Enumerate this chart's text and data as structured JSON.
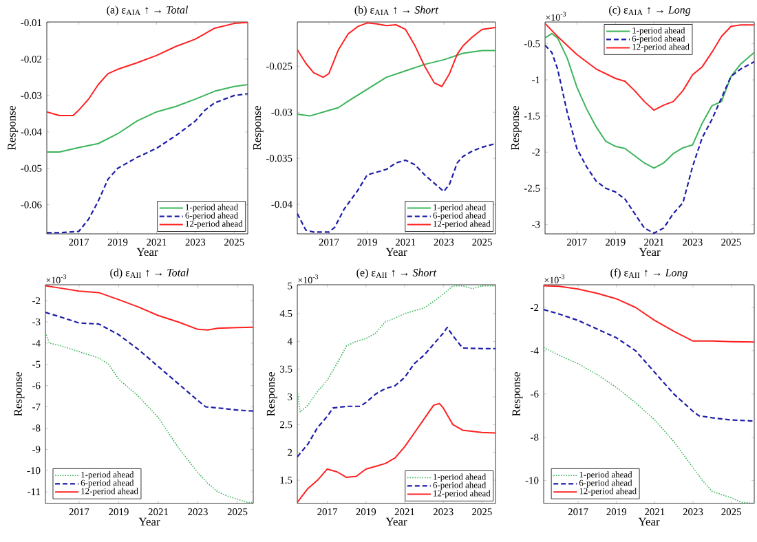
{
  "chart_data": [
    {
      "type": "line",
      "title": "(a) ε$_{AIA}$ ↑ → *Total*",
      "xlabel": "Year",
      "ylabel": "Response",
      "xlim": [
        2015.35,
        2025.7
      ],
      "ylim": [
        -0.068,
        -0.0098
      ],
      "xticks": [
        2017,
        2019,
        2021,
        2023,
        2025
      ],
      "yticks": [
        -0.06,
        -0.05,
        -0.04,
        -0.03,
        -0.02,
        -0.01
      ],
      "legend": "bottom right",
      "series": [
        {
          "name": "1-period ahead",
          "color": "#3cb45a",
          "line_style": "solid",
          "x": [
            2015.35,
            2016,
            2017,
            2018,
            2019,
            2020,
            2021,
            2022,
            2023,
            2024,
            2025,
            2025.7
          ],
          "values": [
            -0.0455,
            -0.0455,
            -0.0443,
            -0.0432,
            -0.0405,
            -0.037,
            -0.0345,
            -0.033,
            -0.031,
            -0.0288,
            -0.0275,
            -0.027
          ]
        },
        {
          "name": "6-period ahead",
          "color": "#1c1ca8",
          "line_style": "dashed",
          "x": [
            2015.35,
            2016,
            2017,
            2017.5,
            2018,
            2018.5,
            2019,
            2020,
            2021,
            2022,
            2023,
            2023.5,
            2024,
            2025,
            2025.7
          ],
          "values": [
            -0.0677,
            -0.0677,
            -0.0673,
            -0.064,
            -0.059,
            -0.053,
            -0.05,
            -0.047,
            -0.0445,
            -0.041,
            -0.037,
            -0.034,
            -0.032,
            -0.03,
            -0.0295
          ]
        },
        {
          "name": "12-period ahead",
          "color": "#ff2020",
          "line_style": "solid",
          "x": [
            2015.35,
            2016,
            2016.7,
            2017,
            2017.5,
            2018,
            2018.5,
            2019,
            2020,
            2021,
            2022,
            2023,
            2024,
            2025,
            2025.7
          ],
          "values": [
            -0.0345,
            -0.0355,
            -0.0355,
            -0.034,
            -0.031,
            -0.027,
            -0.024,
            -0.0228,
            -0.021,
            -0.019,
            -0.0165,
            -0.0145,
            -0.0115,
            -0.0102,
            -0.0099
          ]
        }
      ]
    },
    {
      "type": "line",
      "title": "(b) ε$_{AIA}$ ↑ → *Short*",
      "xlabel": "Year",
      "ylabel": "Response",
      "xlim": [
        2015.35,
        2025.7
      ],
      "ylim": [
        -0.0432,
        -0.0202
      ],
      "xticks": [
        2017,
        2019,
        2021,
        2023,
        2025
      ],
      "yticks": [
        -0.04,
        -0.035,
        -0.03,
        -0.025
      ],
      "legend": "bottom right",
      "series": [
        {
          "name": "1-period ahead",
          "color": "#3cb45a",
          "line_style": "solid",
          "x": [
            2015.35,
            2016,
            2017,
            2017.5,
            2018,
            2019,
            2020,
            2021,
            2022,
            2023,
            2024,
            2025,
            2025.7
          ],
          "values": [
            -0.0302,
            -0.0304,
            -0.0298,
            -0.0295,
            -0.0288,
            -0.0275,
            -0.0262,
            -0.0255,
            -0.0248,
            -0.0243,
            -0.0236,
            -0.0233,
            -0.0233
          ]
        },
        {
          "name": "6-period ahead",
          "color": "#1c1ca8",
          "line_style": "dashed",
          "x": [
            2015.35,
            2015.8,
            2016.2,
            2017,
            2017.3,
            2017.8,
            2018.5,
            2019,
            2019.5,
            2020,
            2020.5,
            2021,
            2021.5,
            2022,
            2022.5,
            2023,
            2023.3,
            2023.7,
            2024,
            2024.5,
            2025,
            2025.7
          ],
          "values": [
            -0.041,
            -0.0428,
            -0.043,
            -0.043,
            -0.0425,
            -0.0405,
            -0.0385,
            -0.0368,
            -0.0365,
            -0.0362,
            -0.0355,
            -0.0352,
            -0.0357,
            -0.0368,
            -0.0377,
            -0.0386,
            -0.0378,
            -0.0355,
            -0.0348,
            -0.0342,
            -0.0338,
            -0.0334
          ]
        },
        {
          "name": "12-period ahead",
          "color": "#ff2020",
          "line_style": "solid",
          "x": [
            2015.35,
            2015.8,
            2016.2,
            2016.7,
            2017,
            2017.5,
            2018,
            2018.5,
            2019,
            2019.5,
            2020,
            2020.5,
            2021,
            2021.5,
            2022,
            2022.5,
            2022.9,
            2023.3,
            2023.7,
            2024,
            2024.5,
            2025,
            2025.7
          ],
          "values": [
            -0.0232,
            -0.0247,
            -0.0257,
            -0.0262,
            -0.0258,
            -0.0232,
            -0.0215,
            -0.0207,
            -0.0203,
            -0.0204,
            -0.0206,
            -0.0205,
            -0.021,
            -0.0228,
            -0.025,
            -0.0268,
            -0.0272,
            -0.0258,
            -0.0237,
            -0.0228,
            -0.0218,
            -0.021,
            -0.0208
          ]
        }
      ]
    },
    {
      "type": "line",
      "title": "(c) ε$_{AIA}$ ↑ → *Long*",
      "xlabel": "Year",
      "ylabel": "Response",
      "annotations": [
        "×10$^{-3}$"
      ],
      "xlim": [
        2015.35,
        2026.2
      ],
      "ylim": [
        -3.13,
        -0.2
      ],
      "xticks": [
        2017,
        2019,
        2021,
        2023,
        2025
      ],
      "yticks": [
        -3,
        -2.5,
        -2,
        -1.5,
        -1,
        -0.5
      ],
      "legend": "top right",
      "series": [
        {
          "name": "1-period ahead",
          "color": "#3cb45a",
          "line_style": "solid",
          "x": [
            2015.35,
            2015.7,
            2016,
            2016.5,
            2017,
            2017.5,
            2018,
            2018.5,
            2019,
            2019.5,
            2020,
            2020.5,
            2021,
            2021.5,
            2022,
            2022.5,
            2023,
            2023.5,
            2024,
            2024.5,
            2025,
            2025.5,
            2026.2
          ],
          "values": [
            -0.42,
            -0.36,
            -0.42,
            -0.7,
            -1.1,
            -1.4,
            -1.65,
            -1.85,
            -1.92,
            -1.95,
            -2.05,
            -2.15,
            -2.22,
            -2.15,
            -2.02,
            -1.94,
            -1.9,
            -1.6,
            -1.36,
            -1.3,
            -0.95,
            -0.78,
            -0.62
          ]
        },
        {
          "name": "6-period ahead",
          "color": "#1c1ca8",
          "line_style": "dashed",
          "x": [
            2015.35,
            2015.7,
            2016,
            2016.5,
            2017,
            2017.5,
            2018,
            2018.5,
            2019,
            2019.5,
            2020,
            2020.5,
            2021,
            2021.5,
            2022,
            2022.5,
            2023,
            2023.5,
            2024,
            2024.5,
            2025,
            2025.5,
            2026.2
          ],
          "values": [
            -0.52,
            -0.62,
            -0.85,
            -1.45,
            -1.95,
            -2.2,
            -2.4,
            -2.5,
            -2.55,
            -2.65,
            -2.85,
            -3.05,
            -3.12,
            -3.05,
            -2.85,
            -2.7,
            -2.2,
            -1.8,
            -1.55,
            -1.25,
            -0.95,
            -0.85,
            -0.75
          ]
        },
        {
          "name": "12-period ahead",
          "color": "#ff2020",
          "line_style": "solid",
          "x": [
            2015.35,
            2016,
            2017,
            2018,
            2019,
            2019.5,
            2020,
            2020.5,
            2021,
            2021.5,
            2022,
            2022.5,
            2023,
            2023.5,
            2024,
            2024.5,
            2025,
            2025.5,
            2026.2
          ],
          "values": [
            -0.22,
            -0.4,
            -0.65,
            -0.85,
            -0.98,
            -1.02,
            -1.15,
            -1.3,
            -1.42,
            -1.35,
            -1.3,
            -1.15,
            -0.93,
            -0.82,
            -0.62,
            -0.4,
            -0.26,
            -0.24,
            -0.24
          ]
        }
      ]
    },
    {
      "type": "line",
      "title": "(d) ε$_{AII}$ ↑ → *Total*",
      "xlabel": "Year",
      "ylabel": "Response",
      "annotations": [
        "×10$^{-3}$"
      ],
      "xlim": [
        2015.3,
        2025.8
      ],
      "ylim": [
        -11.55,
        -1.25
      ],
      "xticks": [
        2017,
        2019,
        2021,
        2023,
        2025
      ],
      "yticks": [
        -11,
        -10,
        -9,
        -8,
        -7,
        -6,
        -5,
        -4,
        -3,
        -2
      ],
      "legend": "bottom left",
      "series": [
        {
          "name": "1-period ahead",
          "color": "#3cb45a",
          "line_style": "dotted",
          "x": [
            2015.3,
            2015.5,
            2016,
            2017,
            2018,
            2018.5,
            2019,
            2020,
            2021,
            2022,
            2023,
            2023.5,
            2024,
            2024.5,
            2025,
            2025.5,
            2025.8
          ],
          "values": [
            -3.5,
            -4.0,
            -4.1,
            -4.4,
            -4.7,
            -5.0,
            -5.7,
            -6.5,
            -7.5,
            -8.9,
            -10.1,
            -10.6,
            -11.0,
            -11.2,
            -11.35,
            -11.5,
            -11.5
          ]
        },
        {
          "name": "6-period ahead",
          "color": "#1c1ca8",
          "line_style": "dashed",
          "x": [
            2015.3,
            2016,
            2017,
            2018,
            2019,
            2020,
            2021,
            2022,
            2023,
            2023.4,
            2024,
            2025,
            2025.8
          ],
          "values": [
            -2.55,
            -2.75,
            -3.05,
            -3.1,
            -3.6,
            -4.3,
            -5.1,
            -5.9,
            -6.7,
            -7.0,
            -7.05,
            -7.15,
            -7.2
          ]
        },
        {
          "name": "12-period ahead",
          "color": "#ff2020",
          "line_style": "solid",
          "x": [
            2015.3,
            2016,
            2017,
            2018,
            2019,
            2020,
            2021,
            2022,
            2023,
            2023.5,
            2024,
            2025,
            2025.8
          ],
          "values": [
            -1.3,
            -1.4,
            -1.55,
            -1.62,
            -1.95,
            -2.3,
            -2.7,
            -3.0,
            -3.35,
            -3.38,
            -3.3,
            -3.27,
            -3.25
          ]
        }
      ]
    },
    {
      "type": "line",
      "title": "(e) ε$_{AII}$ ↑ → *Short*",
      "xlabel": "Year",
      "ylabel": "Response",
      "annotations": [
        "×10$^{-3}$"
      ],
      "xlim": [
        2015.45,
        2025.7
      ],
      "ylim": [
        1.08,
        5.02
      ],
      "xticks": [
        2017,
        2019,
        2021,
        2023,
        2025
      ],
      "yticks": [
        1.5,
        2,
        2.5,
        3,
        3.5,
        4,
        4.5,
        5
      ],
      "legend": "bottom right",
      "series": [
        {
          "name": "1-period ahead",
          "color": "#3cb45a",
          "line_style": "dotted",
          "x": [
            2015.45,
            2015.6,
            2016,
            2016.5,
            2017,
            2017.5,
            2018,
            2018.5,
            2019,
            2019.5,
            2020,
            2020.5,
            2021,
            2022,
            2022.5,
            2023,
            2023.5,
            2024,
            2024.5,
            2025,
            2025.7
          ],
          "values": [
            3.1,
            2.73,
            2.85,
            3.1,
            3.3,
            3.6,
            3.92,
            4.0,
            4.05,
            4.15,
            4.35,
            4.42,
            4.5,
            4.6,
            4.72,
            4.85,
            5.0,
            5.0,
            4.95,
            5.0,
            5.0
          ]
        },
        {
          "name": "6-period ahead",
          "color": "#1c1ca8",
          "line_style": "dashed",
          "x": [
            2015.45,
            2016,
            2016.5,
            2017,
            2017.3,
            2018,
            2018.7,
            2019,
            2019.5,
            2020,
            2020.5,
            2021,
            2021.5,
            2022,
            2022.5,
            2023,
            2023.2,
            2023.5,
            2024,
            2025,
            2025.7
          ],
          "values": [
            1.92,
            2.15,
            2.45,
            2.65,
            2.8,
            2.83,
            2.83,
            2.9,
            3.05,
            3.15,
            3.2,
            3.35,
            3.6,
            3.75,
            3.95,
            4.15,
            4.25,
            4.1,
            3.88,
            3.87,
            3.87
          ]
        },
        {
          "name": "12-period ahead",
          "color": "#ff2020",
          "line_style": "solid",
          "x": [
            2015.45,
            2016,
            2016.5,
            2017,
            2017.5,
            2018,
            2018.5,
            2019,
            2019.5,
            2020,
            2020.5,
            2021,
            2021.5,
            2022,
            2022.5,
            2022.8,
            2023,
            2023.5,
            2024,
            2025,
            2025.7
          ],
          "values": [
            1.1,
            1.35,
            1.5,
            1.7,
            1.65,
            1.55,
            1.57,
            1.7,
            1.75,
            1.8,
            1.9,
            2.1,
            2.35,
            2.6,
            2.85,
            2.88,
            2.8,
            2.5,
            2.4,
            2.36,
            2.35
          ]
        }
      ]
    },
    {
      "type": "line",
      "title": "(f) ε$_{AII}$ ↑ → *Long*",
      "xlabel": "Year",
      "ylabel": "Response",
      "annotations": [
        "×10$^{-3}$"
      ],
      "xlim": [
        2015.2,
        2026.2
      ],
      "ylim": [
        -11.06,
        -0.95
      ],
      "xticks": [
        2017,
        2019,
        2021,
        2023,
        2025
      ],
      "yticks": [
        -10,
        -8,
        -6,
        -4,
        -2
      ],
      "legend": "bottom left",
      "series": [
        {
          "name": "1-period ahead",
          "color": "#3cb45a",
          "line_style": "dotted",
          "x": [
            2015.2,
            2016,
            2017,
            2018,
            2019,
            2020,
            2021,
            2022,
            2023,
            2023.5,
            2024,
            2025,
            2025.5,
            2026.2
          ],
          "values": [
            -3.85,
            -4.2,
            -4.6,
            -5.1,
            -5.7,
            -6.4,
            -7.2,
            -8.2,
            -9.4,
            -10.0,
            -10.5,
            -10.8,
            -11.0,
            -11.05
          ]
        },
        {
          "name": "6-period ahead",
          "color": "#1c1ca8",
          "line_style": "dashed",
          "x": [
            2015.2,
            2016,
            2017,
            2018,
            2019,
            2020,
            2021,
            2022,
            2023,
            2023.3,
            2024,
            2025,
            2026.2
          ],
          "values": [
            -2.1,
            -2.3,
            -2.6,
            -3.0,
            -3.4,
            -4.0,
            -5.0,
            -6.0,
            -6.8,
            -7.0,
            -7.1,
            -7.2,
            -7.25
          ]
        },
        {
          "name": "12-period ahead",
          "color": "#ff2020",
          "line_style": "solid",
          "x": [
            2015.2,
            2016,
            2017,
            2018,
            2019,
            2020,
            2021,
            2022,
            2023,
            2024,
            2025,
            2026.2
          ],
          "values": [
            -1.0,
            -1.02,
            -1.15,
            -1.35,
            -1.6,
            -2.0,
            -2.6,
            -3.1,
            -3.55,
            -3.55,
            -3.58,
            -3.6
          ]
        }
      ]
    }
  ]
}
